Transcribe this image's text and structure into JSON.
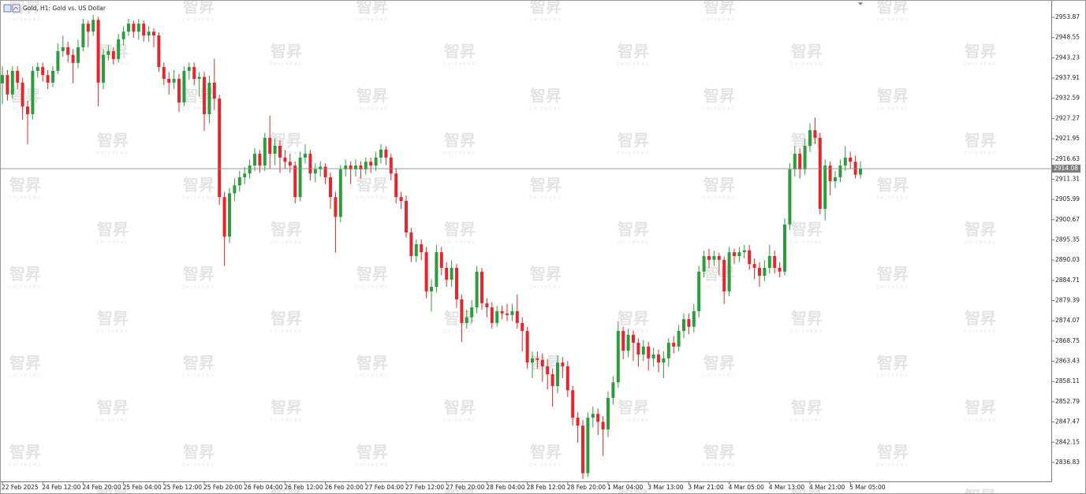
{
  "chart_data": {
    "type": "candlestick",
    "title": "Gold, H1:  Gold vs. US Dollar",
    "watermark": "智昇",
    "watermark_sub": "ZHISHENG",
    "up_color": "#2e9c3c",
    "down_color": "#e5262c",
    "ylim": [
      2832.05,
      2958.43
    ],
    "yticks": [
      2953.87,
      2948.55,
      2943.23,
      2937.91,
      2932.59,
      2927.27,
      2921.95,
      2916.63,
      2911.31,
      2905.99,
      2900.67,
      2895.35,
      2890.03,
      2884.71,
      2879.39,
      2874.07,
      2868.75,
      2863.43,
      2858.11,
      2852.79,
      2847.47,
      2842.15,
      2836.83
    ],
    "price_line": 2914.08,
    "categories": [
      "22 Feb 2025",
      null,
      null,
      null,
      null,
      null,
      null,
      null,
      "24 Feb 12:00",
      null,
      null,
      null,
      null,
      null,
      null,
      null,
      "24 Feb 20:00",
      null,
      null,
      null,
      null,
      null,
      null,
      null,
      "25 Feb 04:00",
      null,
      null,
      null,
      null,
      null,
      null,
      null,
      "25 Feb 12:00",
      null,
      null,
      null,
      null,
      null,
      null,
      null,
      "25 Feb 20:00",
      null,
      null,
      null,
      null,
      null,
      null,
      null,
      "26 Feb 04:00",
      null,
      null,
      null,
      null,
      null,
      null,
      null,
      "26 Feb 12:00",
      null,
      null,
      null,
      null,
      null,
      null,
      null,
      "26 Feb 20:00",
      null,
      null,
      null,
      null,
      null,
      null,
      null,
      "27 Feb 04:00",
      null,
      null,
      null,
      null,
      null,
      null,
      null,
      "27 Feb 12:00",
      null,
      null,
      null,
      null,
      null,
      null,
      null,
      "27 Feb 20:00",
      null,
      null,
      null,
      null,
      null,
      null,
      null,
      "28 Feb 04:00",
      null,
      null,
      null,
      null,
      null,
      null,
      null,
      "28 Feb 12:00",
      null,
      null,
      null,
      null,
      null,
      null,
      null,
      "28 Feb 20:00",
      null,
      null,
      null,
      null,
      null,
      null,
      null,
      "1 Mar 04:00",
      null,
      null,
      null,
      null,
      null,
      null,
      null,
      "3 Mar 13:00",
      null,
      null,
      null,
      null,
      null,
      null,
      null,
      "3 Mar 21:00",
      null,
      null,
      null,
      null,
      null,
      null,
      null,
      "4 Mar 05:00",
      null,
      null,
      null,
      null,
      null,
      null,
      null,
      "4 Mar 13:00",
      null,
      null,
      null,
      null,
      null,
      null,
      null,
      "4 Mar 21:00",
      null,
      null,
      null,
      null,
      null,
      null,
      null,
      "5 Mar 05:00",
      null,
      null
    ],
    "open": [
      2936.5,
      2938.7,
      2933.6,
      2939.8,
      2936.7,
      2930.4,
      2928.4,
      2939.8,
      2940.8,
      2938.7,
      2936.7,
      2939.8,
      2945,
      2946,
      2944,
      2941.9,
      2946,
      2952.2,
      2950.1,
      2953.2,
      2936.7,
      2944,
      2945,
      2942.9,
      2948.1,
      2950.1,
      2952.2,
      2950.1,
      2952.2,
      2949.1,
      2950.1,
      2949.1,
      2940.8,
      2937.7,
      2936.7,
      2937.7,
      2931.5,
      2939.8,
      2940.8,
      2937.7,
      2938.2,
      2928.4,
      2936.7,
      2932.5,
      2906.6,
      2896.2,
      2907.6,
      2909.7,
      2911.8,
      2912.8,
      2914.9,
      2918,
      2914.9,
      2922.2,
      2918,
      2920.1,
      2917,
      2915.9,
      2914.9,
      2906.6,
      2917,
      2918,
      2912.8,
      2913.9,
      2914.6,
      2911.8,
      2906.6,
      2901.4,
      2913.9,
      2914.9,
      2913.9,
      2914.9,
      2913.9,
      2915.9,
      2914.9,
      2917,
      2919.1,
      2917,
      2912.8,
      2906.6,
      2905.6,
      2897.3,
      2891.1,
      2894.2,
      2892.1,
      2881.8,
      2883,
      2892.1,
      2888,
      2884.9,
      2888,
      2879.7,
      2873.5,
      2875,
      2877.6,
      2887,
      2878.7,
      2877.6,
      2873.5,
      2876.6,
      2876,
      2875.6,
      2876.6,
      2873.5,
      2871.4,
      2863.1,
      2864.2,
      2863.8,
      2862.1,
      2860,
      2856.9,
      2863.1,
      2862.1,
      2855.8,
      2848.6,
      2846.5,
      2834,
      2848.6,
      2849.6,
      2847.5,
      2845.5,
      2853.8,
      2857.9,
      2871.4,
      2866.2,
      2870.4,
      2868.3,
      2865.2,
      2867.3,
      2864.2,
      2865.2,
      2863.1,
      2864.2,
      2868.3,
      2867.3,
      2871.4,
      2874.5,
      2872.5,
      2876.6,
      2887,
      2891.1,
      2890.1,
      2891.1,
      2890.1,
      2881.8,
      2892.1,
      2891.1,
      2892.1,
      2892.6,
      2889,
      2888,
      2885.9,
      2888,
      2891.1,
      2888,
      2887,
      2899.4,
      2913.9,
      2918,
      2913.9,
      2920.1,
      2924.2,
      2922.2,
      2903.5,
      2914.9,
      2910.8,
      2911.8,
      2914.9,
      2917,
      2915.9,
      2912.5
    ],
    "high": [
      2941,
      2940,
      2941,
      2941,
      2938,
      2932,
      2941,
      2942,
      2942,
      2940,
      2941,
      2947,
      2949,
      2947.5,
      2945.5,
      2948,
      2953.5,
      2953,
      2954.5,
      2954,
      2945.5,
      2946.5,
      2946,
      2949.5,
      2951.5,
      2953.5,
      2953,
      2953.5,
      2953,
      2951.5,
      2951,
      2950,
      2942,
      2939.5,
      2940,
      2939,
      2941,
      2942,
      2942,
      2939.5,
      2939.5,
      2938.5,
      2943,
      2933.5,
      2908,
      2909,
      2911.5,
      2913.5,
      2914.5,
      2916.5,
      2919.5,
      2919,
      2923.5,
      2928,
      2922,
      2921.5,
      2919,
      2918,
      2916,
      2918.5,
      2920.5,
      2919,
      2915.5,
      2916,
      2915.5,
      2913,
      2908,
      2915,
      2916.5,
      2916,
      2916.5,
      2916,
      2917,
      2917,
      2918.5,
      2920.5,
      2920,
      2918,
      2914,
      2908,
      2907,
      2898.5,
      2895.5,
      2895.5,
      2893.5,
      2885,
      2894,
      2893.5,
      2889.5,
      2890,
      2889,
      2881,
      2877,
      2879.5,
      2888.5,
      2888,
      2880,
      2879,
      2878,
      2878,
      2878.5,
      2878.5,
      2881,
      2875,
      2872.5,
      2866,
      2866,
      2865.5,
      2864,
      2861.5,
      2865,
      2864.5,
      2863.5,
      2857,
      2850,
      2848,
      2850,
      2851.5,
      2851,
      2849,
      2855.5,
      2859.5,
      2874,
      2872.5,
      2872,
      2871.5,
      2869.5,
      2869,
      2868.5,
      2867,
      2866.5,
      2866,
      2869.5,
      2870,
      2873,
      2876,
      2876,
      2878.5,
      2888.5,
      2892.5,
      2893,
      2892.5,
      2892,
      2891,
      2893.5,
      2893,
      2893.5,
      2894,
      2894,
      2890.5,
      2889.5,
      2890,
      2894,
      2892.5,
      2889.5,
      2901,
      2915.5,
      2920,
      2919.5,
      2922,
      2926,
      2927.5,
      2923.5,
      2916.5,
      2916,
      2913.5,
      2916.5,
      2920,
      2918.5,
      2917.5,
      2916
    ],
    "low": [
      2931,
      2932,
      2932.5,
      2935,
      2927,
      2920.5,
      2927,
      2938,
      2937,
      2935,
      2935.5,
      2939,
      2943.5,
      2942,
      2936.5,
      2940.5,
      2945,
      2946,
      2949,
      2930.5,
      2935,
      2942.5,
      2941.5,
      2942,
      2946.5,
      2949,
      2948.5,
      2948,
      2947.5,
      2947.5,
      2946,
      2939.5,
      2936,
      2933.5,
      2935,
      2929,
      2930.5,
      2937.5,
      2936,
      2933,
      2924,
      2926,
      2929.5,
      2904.5,
      2888.5,
      2894.5,
      2905.5,
      2908,
      2910,
      2911.5,
      2913.5,
      2913,
      2913.5,
      2914,
      2915,
      2913,
      2914,
      2913,
      2905,
      2905.5,
      2915.5,
      2911,
      2910.5,
      2912,
      2910,
      2903.5,
      2892,
      2900,
      2912,
      2910,
      2912,
      2911.5,
      2912.5,
      2913,
      2913.5,
      2915.5,
      2915,
      2911,
      2905,
      2903.5,
      2896,
      2889.5,
      2889.5,
      2890,
      2880,
      2876.5,
      2881.5,
      2886,
      2883,
      2883,
      2877.5,
      2868.5,
      2872,
      2873.5,
      2876,
      2877,
      2875,
      2872,
      2872.5,
      2874.5,
      2874,
      2874,
      2872,
      2866,
      2861.5,
      2859,
      2861.5,
      2858,
      2856,
      2851.5,
      2855,
      2859,
      2854,
      2846.5,
      2842,
      2832.5,
      2833,
      2846,
      2844,
      2838.5,
      2843.5,
      2852,
      2856.5,
      2864,
      2864.5,
      2863.5,
      2862,
      2863.5,
      2861,
      2862,
      2860.5,
      2859,
      2862,
      2865.5,
      2866,
      2869.5,
      2870.5,
      2871,
      2875,
      2885.5,
      2888,
      2888.5,
      2886,
      2878.5,
      2880.5,
      2889,
      2889.5,
      2890.5,
      2887.5,
      2885,
      2883,
      2884.5,
      2886.5,
      2886.5,
      2885.5,
      2886,
      2898,
      2912,
      2911.5,
      2912.5,
      2918.5,
      2920.5,
      2902,
      2900.5,
      2907,
      2909,
      2910.5,
      2913.5,
      2914,
      2911.5,
      2911.5
    ],
    "close": [
      2938.7,
      2933.6,
      2939.8,
      2936.7,
      2930.4,
      2928.4,
      2939.8,
      2940.8,
      2938.7,
      2936.7,
      2939.8,
      2945,
      2946,
      2944,
      2941.9,
      2946,
      2952.2,
      2950.1,
      2953.2,
      2936.7,
      2944,
      2945,
      2942.9,
      2948.1,
      2950.1,
      2952.2,
      2950.1,
      2952.2,
      2949.1,
      2950.1,
      2949.1,
      2940.8,
      2937.7,
      2936.7,
      2937.7,
      2931.5,
      2939.8,
      2940.8,
      2937.7,
      2938.2,
      2928.4,
      2936.7,
      2932.5,
      2906.6,
      2896.2,
      2907.6,
      2909.7,
      2911.8,
      2912.8,
      2914.9,
      2918,
      2914.9,
      2922.2,
      2918,
      2920.1,
      2917,
      2915.9,
      2914.9,
      2906.6,
      2917,
      2918,
      2912.8,
      2913.9,
      2914.6,
      2911.8,
      2906.6,
      2901.4,
      2913.9,
      2914.9,
      2913.9,
      2914.9,
      2913.9,
      2915.9,
      2914.9,
      2917,
      2919.1,
      2917,
      2912.8,
      2906.6,
      2905.6,
      2897.3,
      2891.1,
      2894.2,
      2892.1,
      2881.8,
      2883,
      2892.1,
      2888,
      2884.9,
      2888,
      2879.7,
      2873.5,
      2875,
      2877.6,
      2887,
      2878.7,
      2877.6,
      2873.5,
      2876.6,
      2876,
      2875.6,
      2876.6,
      2873.5,
      2871.4,
      2863.1,
      2864.2,
      2863.8,
      2862.1,
      2860,
      2856.9,
      2863.1,
      2862.1,
      2855.8,
      2848.6,
      2846.5,
      2834,
      2848.6,
      2849.6,
      2847.5,
      2845.5,
      2853.8,
      2857.9,
      2871.4,
      2866.2,
      2870.4,
      2868.3,
      2865.2,
      2867.3,
      2864.2,
      2865.2,
      2863.1,
      2864.2,
      2868.3,
      2867.3,
      2871.4,
      2874.5,
      2872.5,
      2876.6,
      2887,
      2891.1,
      2890.1,
      2891.1,
      2890.1,
      2881.8,
      2892.1,
      2891.1,
      2892.1,
      2892.6,
      2889,
      2888,
      2885.9,
      2888,
      2891.1,
      2888,
      2887,
      2899.4,
      2913.9,
      2918,
      2913.9,
      2920.1,
      2924.2,
      2922.2,
      2903.5,
      2914.9,
      2910.8,
      2911.8,
      2914.9,
      2917,
      2915.9,
      2912.5,
      2914.1
    ]
  }
}
